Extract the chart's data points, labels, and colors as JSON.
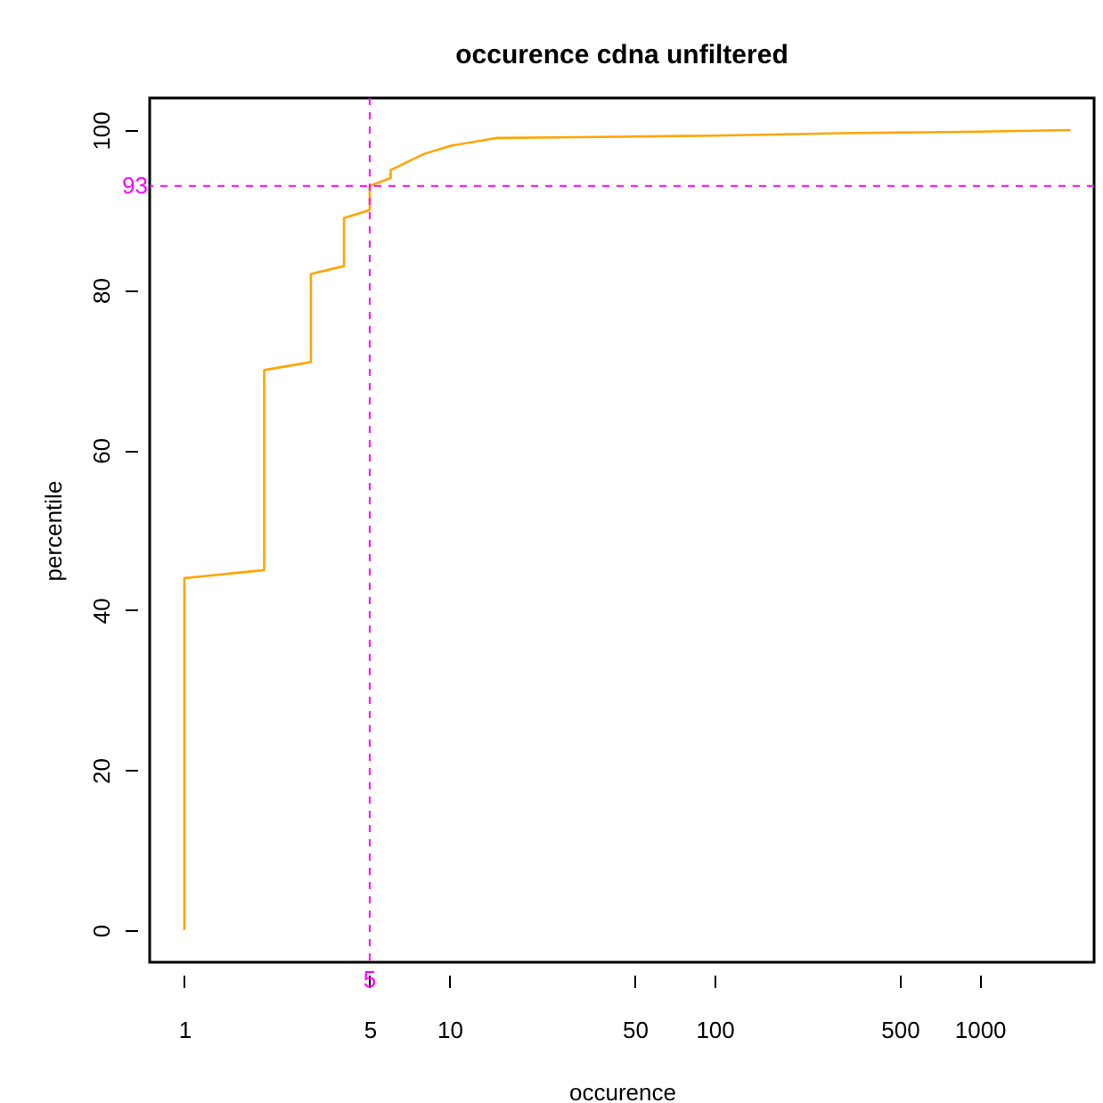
{
  "chart_data": {
    "type": "line",
    "title": "occurence cdna unfiltered",
    "xlabel": "occurence",
    "ylabel": "percentile",
    "x": [
      1,
      1,
      2,
      2,
      3,
      3,
      4,
      4,
      5,
      5,
      6,
      6,
      8,
      10,
      15,
      30,
      100,
      300,
      1000,
      2200
    ],
    "series": [
      {
        "color": "#ffa500",
        "values": [
          0,
          44,
          45,
          70,
          71,
          82,
          83,
          89,
          90,
          93,
          94,
          95,
          97,
          98,
          99,
          99.1,
          99.3,
          99.6,
          99.8,
          100
        ]
      }
    ],
    "log": "x",
    "xlim": [
      0.74,
      2700
    ],
    "xticks": [
      1,
      5,
      10,
      50,
      100,
      500,
      1000
    ],
    "ylim": [
      -4,
      104
    ],
    "yticks": [
      0,
      20,
      40,
      60,
      80,
      100
    ],
    "ref_lines": [
      {
        "axis": "x",
        "value": 5,
        "label": "5",
        "color": "#ff00ff",
        "line_style": "dashed"
      },
      {
        "axis": "y",
        "value": 93,
        "label": "93",
        "color": "#ff00ff",
        "line_style": "dashed"
      }
    ]
  }
}
